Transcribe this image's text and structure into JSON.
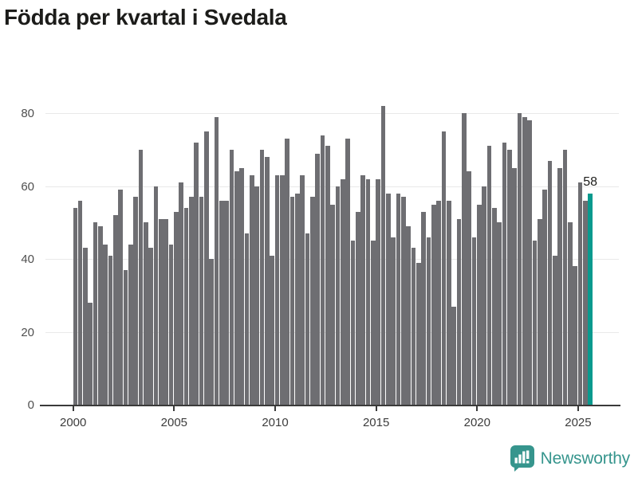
{
  "title": "Födda per kvartal i Svedala",
  "chart_data": {
    "type": "bar",
    "title": "Födda per kvartal i Svedala",
    "xlabel": "",
    "ylabel": "",
    "x_unit": "quarter",
    "x_tick_labels": [
      "2000",
      "2005",
      "2010",
      "2015",
      "2020",
      "2025"
    ],
    "y_tick_labels": [
      "0",
      "20",
      "40",
      "60",
      "80"
    ],
    "y_ticks": [
      0,
      20,
      40,
      60,
      80
    ],
    "ylim": [
      0,
      85
    ],
    "grid": "horizontal",
    "legend": "none",
    "values": [
      54,
      56,
      43,
      28,
      50,
      49,
      44,
      41,
      52,
      59,
      37,
      44,
      57,
      70,
      50,
      43,
      60,
      51,
      51,
      44,
      53,
      61,
      54,
      57,
      72,
      57,
      75,
      40,
      79,
      56,
      56,
      70,
      64,
      65,
      47,
      63,
      60,
      70,
      68,
      41,
      63,
      63,
      73,
      57,
      58,
      63,
      47,
      57,
      69,
      74,
      71,
      55,
      60,
      62,
      73,
      45,
      53,
      63,
      62,
      45,
      62,
      82,
      58,
      46,
      58,
      57,
      49,
      43,
      39,
      53,
      46,
      55,
      56,
      75,
      56,
      27,
      51,
      80,
      64,
      46,
      55,
      60,
      71,
      54,
      50,
      72,
      70,
      65,
      80,
      79,
      78,
      45,
      51,
      59,
      67,
      41,
      65,
      70,
      50,
      38,
      61,
      56,
      58
    ],
    "highlight": {
      "index_from_end": 1,
      "value": 58,
      "label": "58"
    },
    "colors": {
      "bar": "#6e6e72",
      "accent": "#089a8e",
      "grid": "#e9e9e9",
      "axis": "#3a3a3a",
      "label": "#1d1d1b"
    }
  },
  "footer": {
    "brand": "Newsworthy",
    "brand_color": "#36958d",
    "icon": "bar-chart-speech-bubble"
  }
}
